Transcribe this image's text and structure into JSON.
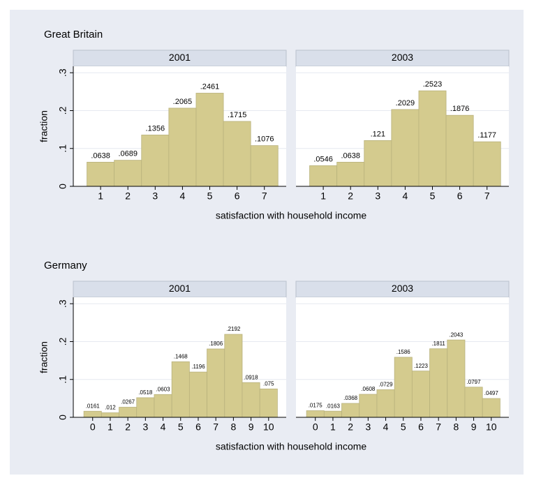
{
  "chart_data": [
    {
      "type": "bar",
      "title": "Great Britain",
      "xlabel": "satisfaction with household income",
      "ylabel": "fraction",
      "x": [
        1,
        2,
        3,
        4,
        5,
        6,
        7
      ],
      "xlim": [
        0,
        7.8
      ],
      "ylim": [
        0,
        0.317
      ],
      "yticks": [
        0,
        {
          "value": 0.1,
          "label": ".1"
        },
        {
          "value": 0.2,
          "label": ".2"
        },
        {
          "value": 0.3,
          "label": ".3"
        }
      ],
      "color": "#d4cb8e",
      "grid": true,
      "panels": [
        {
          "title": "2001",
          "values": [
            0.0638,
            0.0689,
            0.1356,
            0.2065,
            0.2461,
            0.1715,
            0.1076
          ],
          "value_labels": [
            ".0638",
            ".0689",
            ".1356",
            ".2065",
            ".2461",
            ".1715",
            ".1076"
          ]
        },
        {
          "title": "2003",
          "values": [
            0.0546,
            0.0638,
            0.121,
            0.2029,
            0.2523,
            0.1876,
            0.1177
          ],
          "value_labels": [
            ".0546",
            ".0638",
            ".121",
            ".2029",
            ".2523",
            ".1876",
            ".1177"
          ]
        }
      ]
    },
    {
      "type": "bar",
      "title": "Germany",
      "xlabel": "satisfaction with household income",
      "ylabel": "fraction",
      "x": [
        0,
        1,
        2,
        3,
        4,
        5,
        6,
        7,
        8,
        9,
        10
      ],
      "xlim": [
        -1.1,
        11
      ],
      "ylim": [
        0,
        0.317
      ],
      "yticks": [
        0,
        {
          "value": 0.1,
          "label": ".1"
        },
        {
          "value": 0.2,
          "label": ".2"
        },
        {
          "value": 0.3,
          "label": ".3"
        }
      ],
      "color": "#d4cb8e",
      "grid": true,
      "panels": [
        {
          "title": "2001",
          "values": [
            0.0161,
            0.012,
            0.0267,
            0.0518,
            0.0603,
            0.1468,
            0.1196,
            0.1806,
            0.2192,
            0.0918,
            0.075
          ],
          "value_labels": [
            ".0161",
            ".012",
            ".0267",
            ".0518",
            ".0603",
            ".1468",
            ".1196",
            ".1806",
            ".2192",
            ".0918",
            ".075"
          ]
        },
        {
          "title": "2003",
          "values": [
            0.0175,
            0.0163,
            0.0368,
            0.0608,
            0.0729,
            0.1586,
            0.1223,
            0.1811,
            0.2043,
            0.0797,
            0.0497
          ],
          "value_labels": [
            ".0175",
            ".0163",
            ".0368",
            ".0608",
            ".0729",
            ".1586",
            ".1223",
            ".1811",
            ".2043",
            ".0797",
            ".0497"
          ]
        }
      ]
    }
  ]
}
